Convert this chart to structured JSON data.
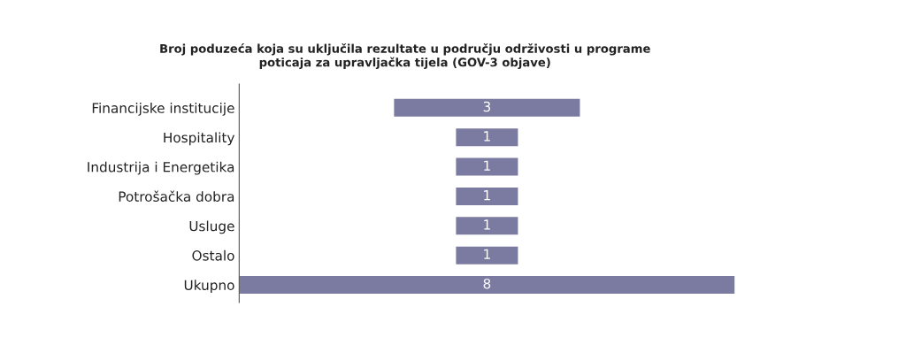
{
  "chart_data": {
    "type": "other",
    "title": "Broj poduzeća koja su uključila rezultate u području održivosti u programe\npoticaja za upravljačka tijela (GOV-3 objave)",
    "categories": [
      "Financijske institucije",
      "Hospitality",
      "Industrija i Energetika",
      "Potrošačka dobra",
      "Usluge",
      "Ostalo",
      "Ukupno"
    ],
    "values": [
      3,
      1,
      1,
      1,
      1,
      1,
      8
    ],
    "color": "#7b7aa1",
    "data_labels": true
  }
}
